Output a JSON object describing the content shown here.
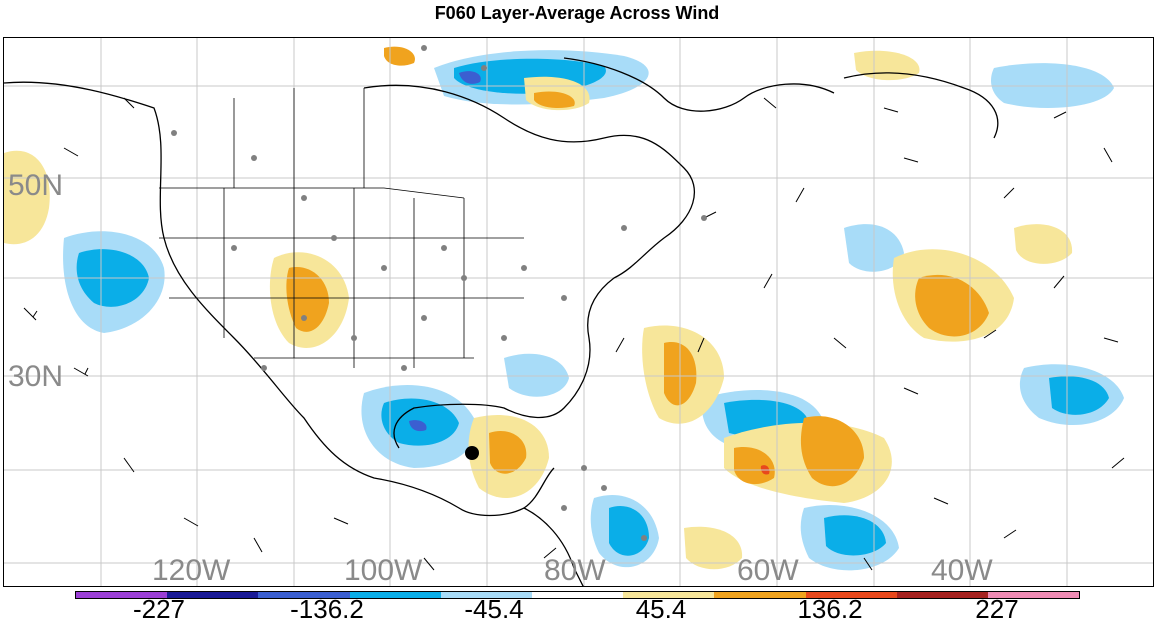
{
  "title": "F060 Layer-Average Across Wind",
  "lat_labels": [
    "50N",
    "30N"
  ],
  "lon_labels": [
    "120W",
    "100W",
    "80W",
    "60W",
    "40W"
  ],
  "colorbar": {
    "colors": [
      "#9b3fd6",
      "#1a1a96",
      "#3b5fd1",
      "#0aaee8",
      "#a8dcf8",
      "#ffffff",
      "#f7e69a",
      "#f0a31e",
      "#e8481c",
      "#a62220",
      "#f08cb5"
    ],
    "labels": [
      "-227",
      "-136.2",
      "-45.4",
      "45.4",
      "136.2",
      "227"
    ]
  },
  "marker": {
    "label": "",
    "color": "#000000"
  }
}
